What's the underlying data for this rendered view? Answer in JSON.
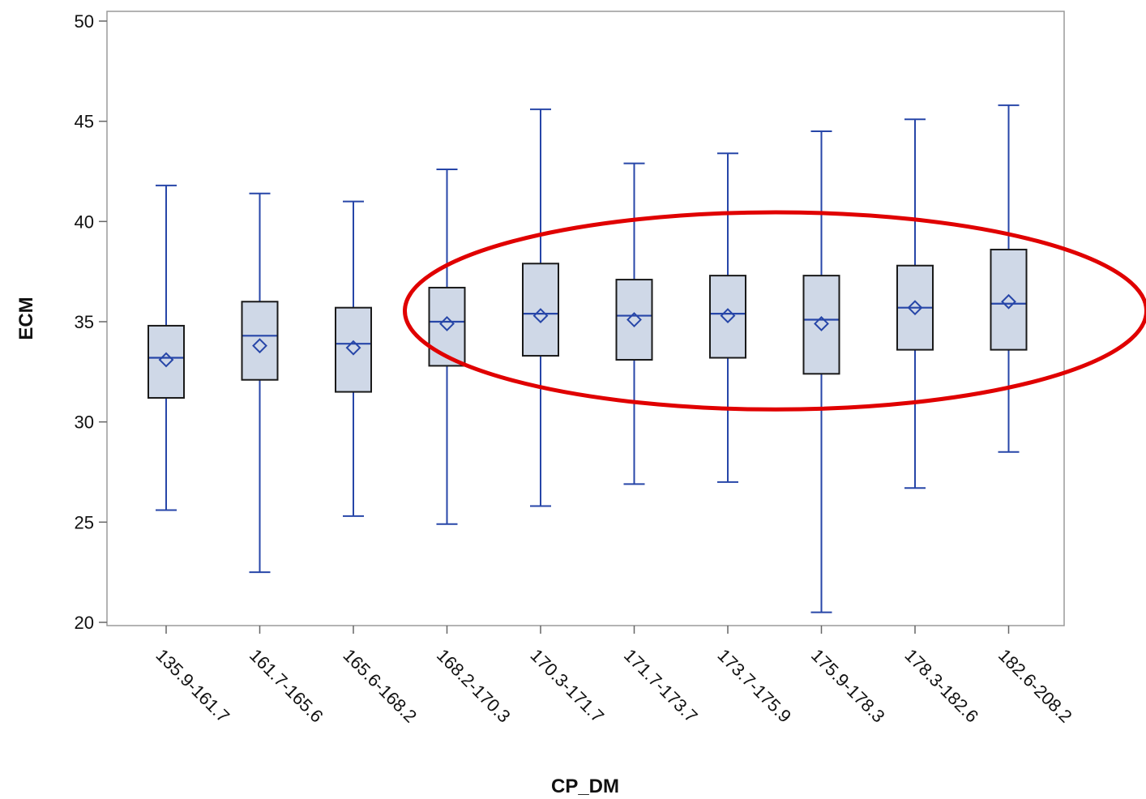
{
  "chart_data": {
    "type": "box",
    "xlabel": "CP_DM",
    "ylabel": "ECM",
    "ylim": [
      20,
      50
    ],
    "yticks": [
      20,
      25,
      30,
      35,
      40,
      45,
      50
    ],
    "grid": false,
    "categories": [
      "135.9-161.7",
      "161.7-165.6",
      "165.6-168.2",
      "168.2-170.3",
      "170.3-171.7",
      "171.7-173.7",
      "173.7-175.9",
      "175.9-178.3",
      "178.3-182.6",
      "182.6-208.2"
    ],
    "boxes": [
      {
        "min": 25.6,
        "q1": 31.2,
        "median": 33.2,
        "q3": 34.8,
        "max": 41.8,
        "mean": 33.1
      },
      {
        "min": 22.5,
        "q1": 32.1,
        "median": 34.3,
        "q3": 36.0,
        "max": 41.4,
        "mean": 33.8
      },
      {
        "min": 25.3,
        "q1": 31.5,
        "median": 33.9,
        "q3": 35.7,
        "max": 41.0,
        "mean": 33.7
      },
      {
        "min": 24.9,
        "q1": 32.8,
        "median": 35.0,
        "q3": 36.7,
        "max": 42.6,
        "mean": 34.9
      },
      {
        "min": 25.8,
        "q1": 33.3,
        "median": 35.4,
        "q3": 37.9,
        "max": 45.6,
        "mean": 35.3
      },
      {
        "min": 26.9,
        "q1": 33.1,
        "median": 35.3,
        "q3": 37.1,
        "max": 42.9,
        "mean": 35.1
      },
      {
        "min": 27.0,
        "q1": 33.2,
        "median": 35.4,
        "q3": 37.3,
        "max": 43.4,
        "mean": 35.3
      },
      {
        "min": 20.5,
        "q1": 32.4,
        "median": 35.1,
        "q3": 37.3,
        "max": 44.5,
        "mean": 34.9
      },
      {
        "min": 26.7,
        "q1": 33.6,
        "median": 35.7,
        "q3": 37.8,
        "max": 45.1,
        "mean": 35.7
      },
      {
        "min": 28.5,
        "q1": 33.6,
        "median": 35.9,
        "q3": 38.6,
        "max": 45.8,
        "mean": 36.0
      }
    ],
    "annotation": {
      "shape": "ellipse",
      "color": "#e00000",
      "highlights_categories": [
        "168.2-170.3",
        "170.3-171.7",
        "171.7-173.7",
        "173.7-175.9",
        "175.9-178.3",
        "178.3-182.6",
        "182.6-208.2"
      ]
    },
    "colors": {
      "box_fill": "#cfd8e7",
      "box_stroke": "#1a1a1a",
      "whisker": "#2746a8",
      "median": "#2746a8",
      "mean_marker": "#2746a8"
    }
  }
}
